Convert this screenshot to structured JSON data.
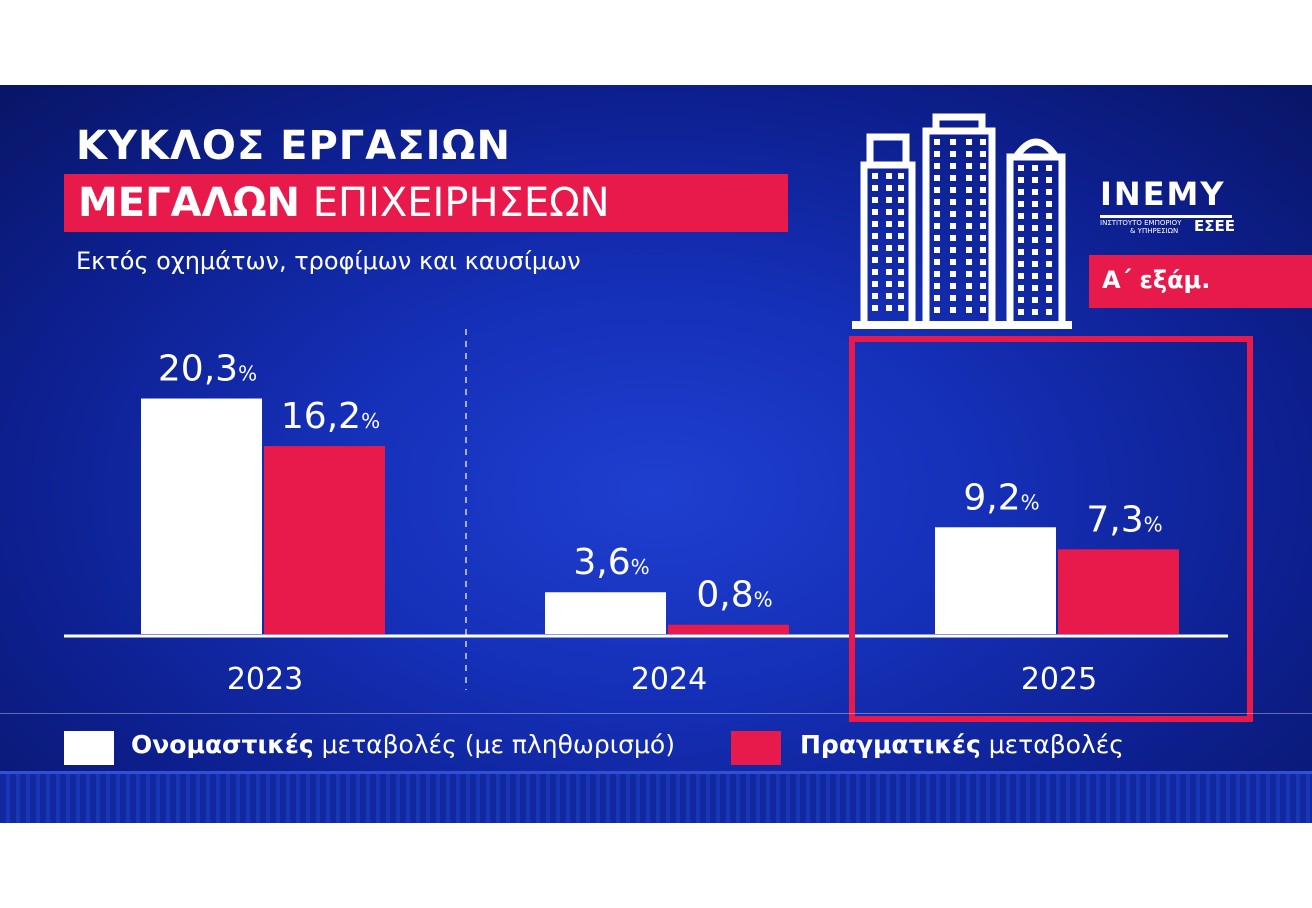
{
  "title_line1": "ΚΥΚΛΟΣ ΕΡΓΑΣΙΩΝ",
  "title_line2_bold": "ΜΕΓΑΛΩΝ",
  "title_line2_rest": "ΕΠΙΧΕΙΡΗΣΕΩΝ",
  "subtitle": "Εκτός οχημάτων, τροφίμων και καυσίμων",
  "logo": {
    "name": "INEMY",
    "line1": "ΙΝΣΤΙΤΟΥΤΟ ΕΜΠΟΡΙΟΥ",
    "line2": "& ΥΠΗΡΕΣΙΩΝ",
    "org": "ΕΣΕΕ"
  },
  "period_label": "Α΄ εξάμ.",
  "colors": {
    "nominal": "#ffffff",
    "real": "#e8194b",
    "background": "#1530b8"
  },
  "chart_data": {
    "type": "bar",
    "categories": [
      "2023",
      "2024",
      "2025"
    ],
    "unit": "%",
    "series": [
      {
        "name": "Ονομαστικές μεταβολές (με πληθωρισμό)",
        "values": [
          20.3,
          3.6,
          9.2
        ],
        "labels": [
          "20,3",
          "3,6",
          "9,2"
        ]
      },
      {
        "name": "Πραγματικές μεταβολές",
        "values": [
          16.2,
          0.8,
          7.3
        ],
        "labels": [
          "16,2",
          "0,8",
          "7,3"
        ]
      }
    ],
    "highlighted_category": "2025",
    "legend_placement": "bottom"
  },
  "legend": [
    {
      "bold": "Ονομαστικές",
      "rest": "μεταβολές (με πληθωρισμό)"
    },
    {
      "bold": "Πραγματικές",
      "rest": "μεταβολές"
    }
  ],
  "icons": [
    "buildings-icon"
  ]
}
